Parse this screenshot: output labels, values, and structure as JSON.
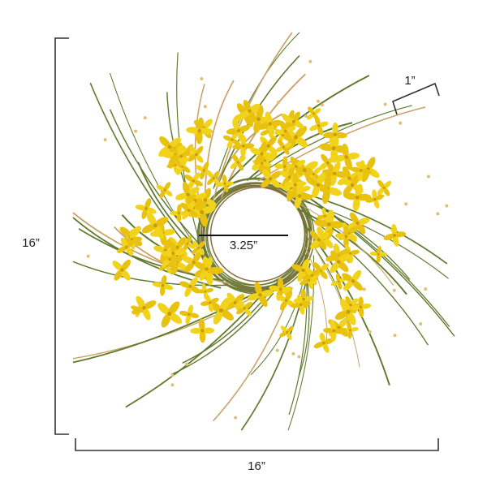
{
  "dimensions": {
    "height": "16”",
    "width": "16”",
    "inner_diameter": "3.25”",
    "depth": "1”"
  }
}
